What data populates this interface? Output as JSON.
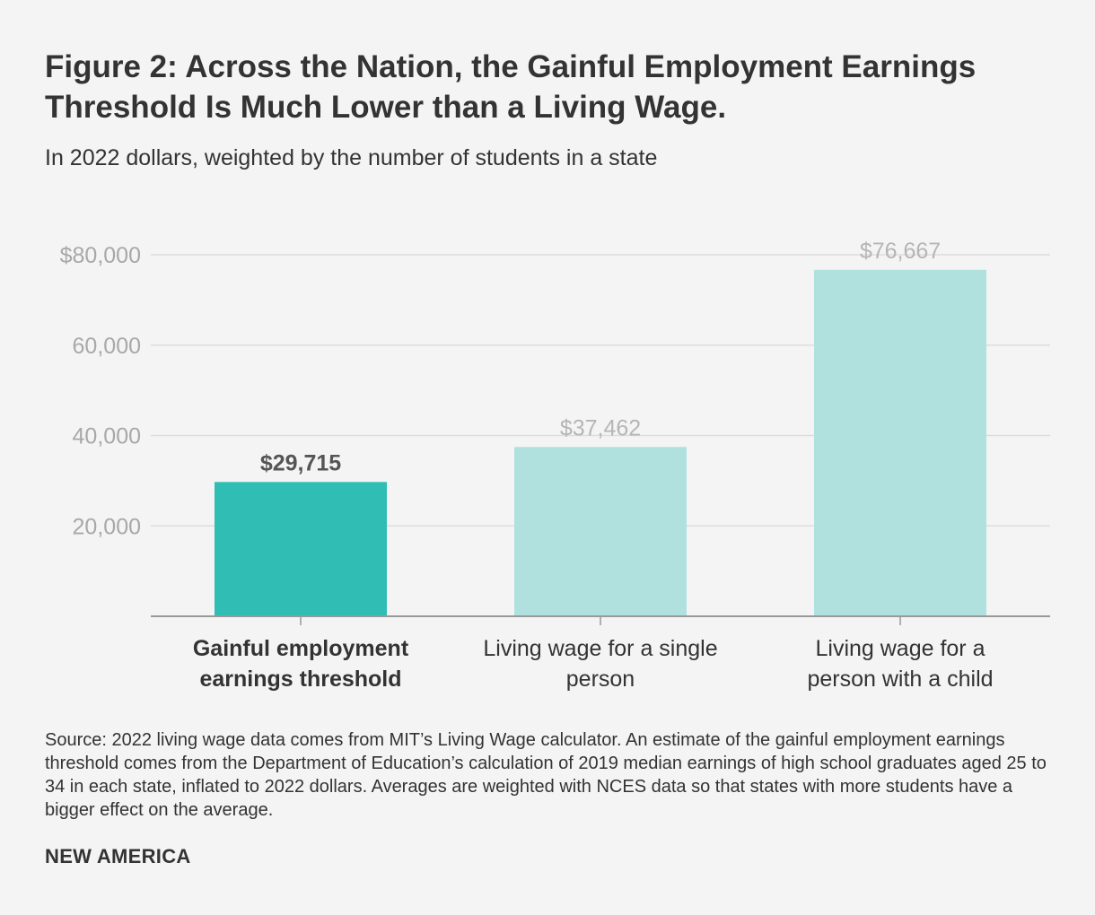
{
  "title_lines": [
    "Figure 2: Across the Nation, the Gainful Employment Earnings",
    "Threshold Is Much Lower than a Living Wage."
  ],
  "subtitle": "In 2022 dollars, weighted by the number of students in a state",
  "source": "Source: 2022 living wage data comes from MIT’s Living Wage calculator. An estimate of the gainful employment earnings threshold comes from the Department of Education’s calculation of 2019 median earnings of high school graduates aged 25 to 34 in each state, inflated to 2022 dollars. Averages are weighted with NCES data so that states with more students have a bigger effect on the average.",
  "brand": "NEW AMERICA",
  "colors": {
    "highlight_bar": "#2fbdb4",
    "muted_bar": "#b0e1df",
    "highlight_label": "#555555",
    "muted_label": "#b5b5b5",
    "axis_tick_label": "#a8a8a8",
    "gridline": "#dddddd",
    "axis": "#999999"
  },
  "chart_data": {
    "type": "bar",
    "title": "Figure 2: Across the Nation, the Gainful Employment Earnings Threshold Is Much Lower than a Living Wage.",
    "ylim": [
      0,
      80000
    ],
    "yticks": [
      20000,
      40000,
      60000,
      80000
    ],
    "ytick_labels": [
      "20,000",
      "40,000",
      "60,000",
      "$80,000"
    ],
    "categories": [
      [
        "Gainful employment",
        "earnings threshold"
      ],
      [
        "Living wage for a single",
        "person"
      ],
      [
        "Living wage for a",
        "person with a child"
      ]
    ],
    "values": [
      29715,
      37462,
      76667
    ],
    "value_labels": [
      "$29,715",
      "$37,462",
      "$76,667"
    ],
    "highlight": [
      true,
      false,
      false
    ]
  }
}
